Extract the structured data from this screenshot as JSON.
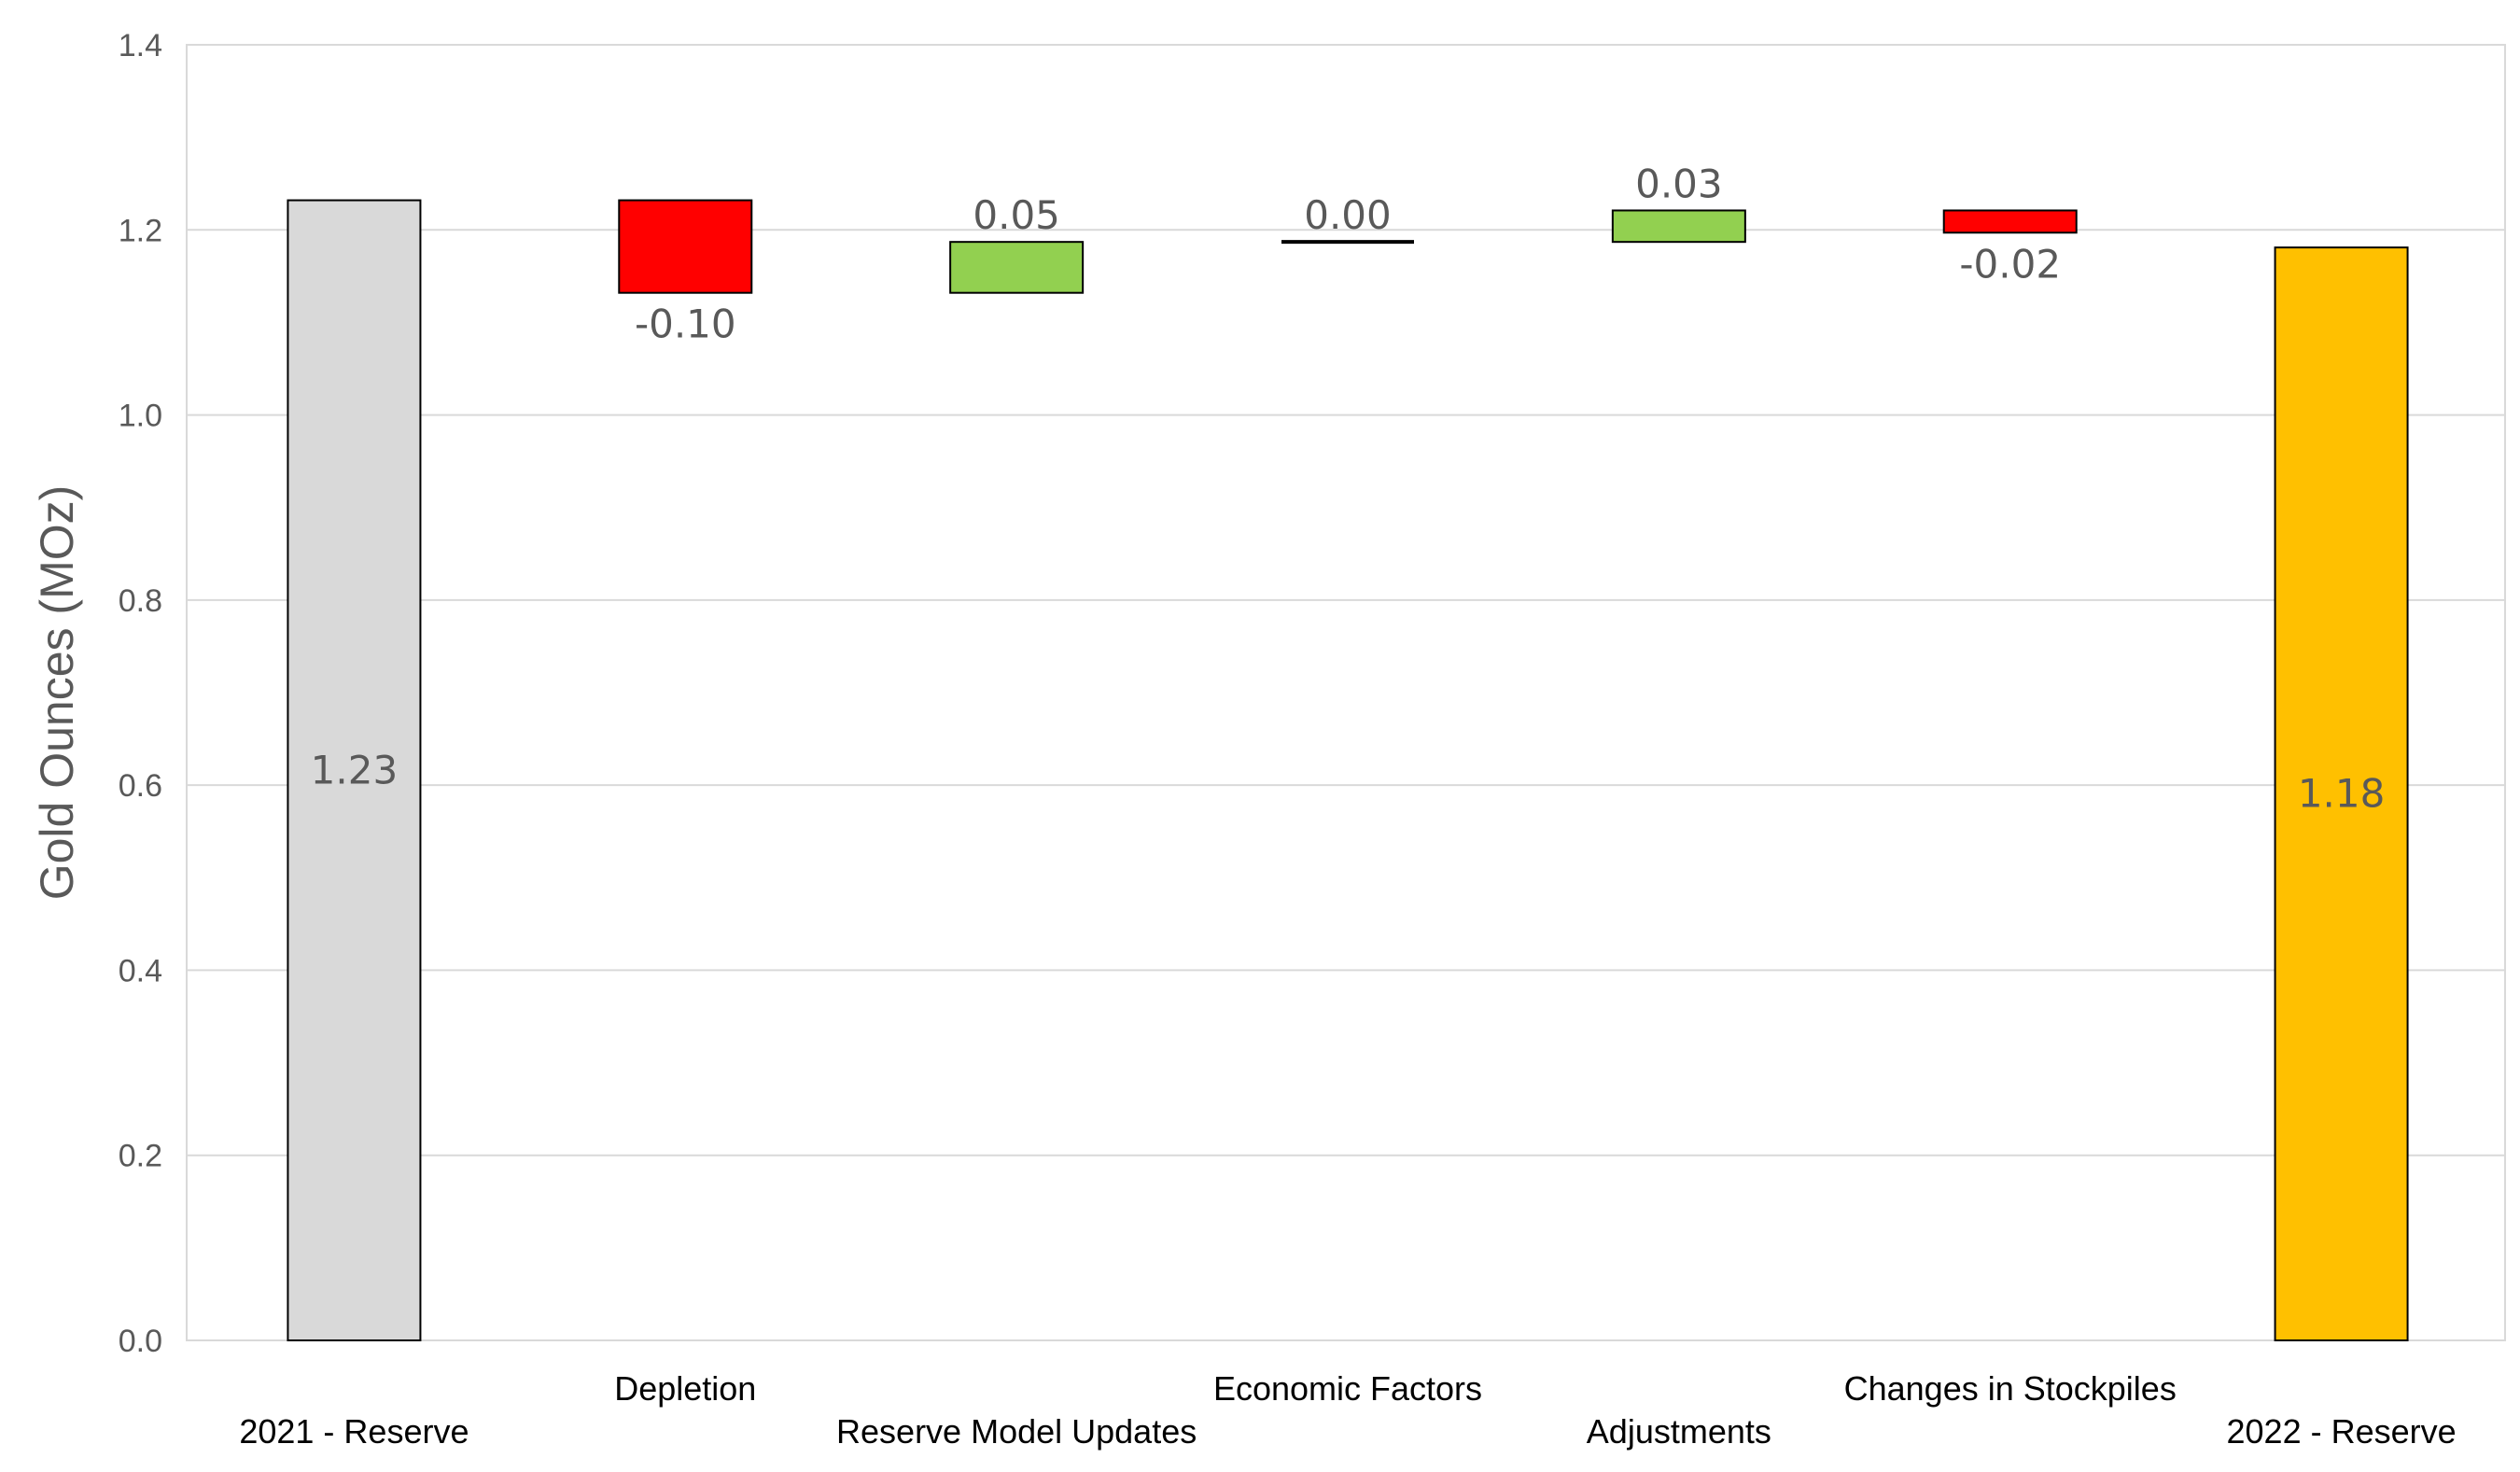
{
  "chart_data": {
    "type": "bar",
    "subtype": "waterfall",
    "title": "",
    "xlabel": "",
    "ylabel": "Gold Ounces (MOz)",
    "ylim": [
      0,
      1.4
    ],
    "yticks": [
      "0.0",
      "0.2",
      "0.4",
      "0.6",
      "0.8",
      "1.0",
      "1.2",
      "1.4"
    ],
    "grid": true,
    "legend": "none",
    "categories": [
      "2021 - Reserve",
      "Depletion",
      "Reserve Model Updates",
      "Economic Factors",
      "Adjustments",
      "Changes in Stockpiles",
      "2022 - Reserve"
    ],
    "values": [
      1.23,
      -0.1,
      0.05,
      0.0,
      0.03,
      -0.02,
      1.18
    ],
    "data_labels": [
      "1.23",
      "-0.10",
      "0.05",
      "0.00",
      "0.03",
      "-0.02",
      "1.18"
    ],
    "bars": [
      {
        "kind": "total",
        "start": 0,
        "end": 1.232,
        "color": "#d9d9d9"
      },
      {
        "kind": "decrease",
        "start": 1.232,
        "end": 1.132,
        "color": "#ff0000"
      },
      {
        "kind": "increase",
        "start": 1.132,
        "end": 1.187,
        "color": "#92d050"
      },
      {
        "kind": "flat",
        "start": 1.187,
        "end": 1.187,
        "color": "#000000"
      },
      {
        "kind": "increase",
        "start": 1.187,
        "end": 1.221,
        "color": "#92d050"
      },
      {
        "kind": "decrease",
        "start": 1.221,
        "end": 1.197,
        "color": "#ff0000"
      },
      {
        "kind": "total",
        "start": 0,
        "end": 1.181,
        "color": "#ffc000"
      }
    ],
    "colors": {
      "total_start": "#d9d9d9",
      "decrease": "#ff0000",
      "increase": "#92d050",
      "total_end": "#ffc000",
      "gridline": "#d9d9d9",
      "axis_text": "#595959"
    }
  }
}
